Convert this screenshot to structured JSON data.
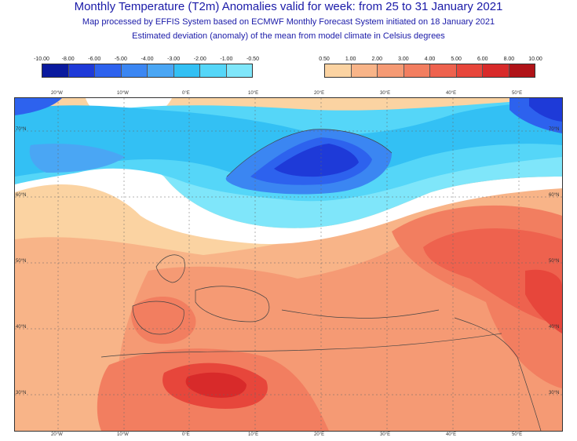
{
  "header": {
    "title": "Monthly Temperature (T2m) Anomalies valid for week: from 25 to 31 January 2021",
    "subtitle1": "Map processed by EFFIS System based on ECMWF Monthly Forecast System initiated on 18 January 2021",
    "subtitle2": "Estimated deviation (anomaly) of the mean from model climate in Celsius degrees"
  },
  "legend": {
    "cold": {
      "labels": [
        "-10.00",
        "-8.00",
        "-6.00",
        "-5.00",
        "-4.00",
        "-3.00",
        "-2.00",
        "-1.00",
        "-0.50"
      ],
      "colors": [
        "#0a1a9e",
        "#1e3ad8",
        "#2d62ee",
        "#3b86f2",
        "#4aa6f4",
        "#33c0f4",
        "#55d6f8",
        "#7fe6fa"
      ]
    },
    "warm": {
      "labels": [
        "0.50",
        "1.00",
        "2.00",
        "3.00",
        "4.00",
        "5.00",
        "6.00",
        "8.00",
        "10.00"
      ],
      "colors": [
        "#fbd3a2",
        "#f8b488",
        "#f59a74",
        "#f27e60",
        "#ee624e",
        "#e7463b",
        "#d82a2a",
        "#b01318"
      ]
    }
  },
  "map": {
    "lon_labels": [
      "20°W",
      "10°W",
      "0°E",
      "10°E",
      "20°E",
      "30°E",
      "40°E",
      "50°E"
    ],
    "lat_labels": [
      "70°N",
      "60°N",
      "50°N",
      "40°N",
      "30°N"
    ]
  }
}
